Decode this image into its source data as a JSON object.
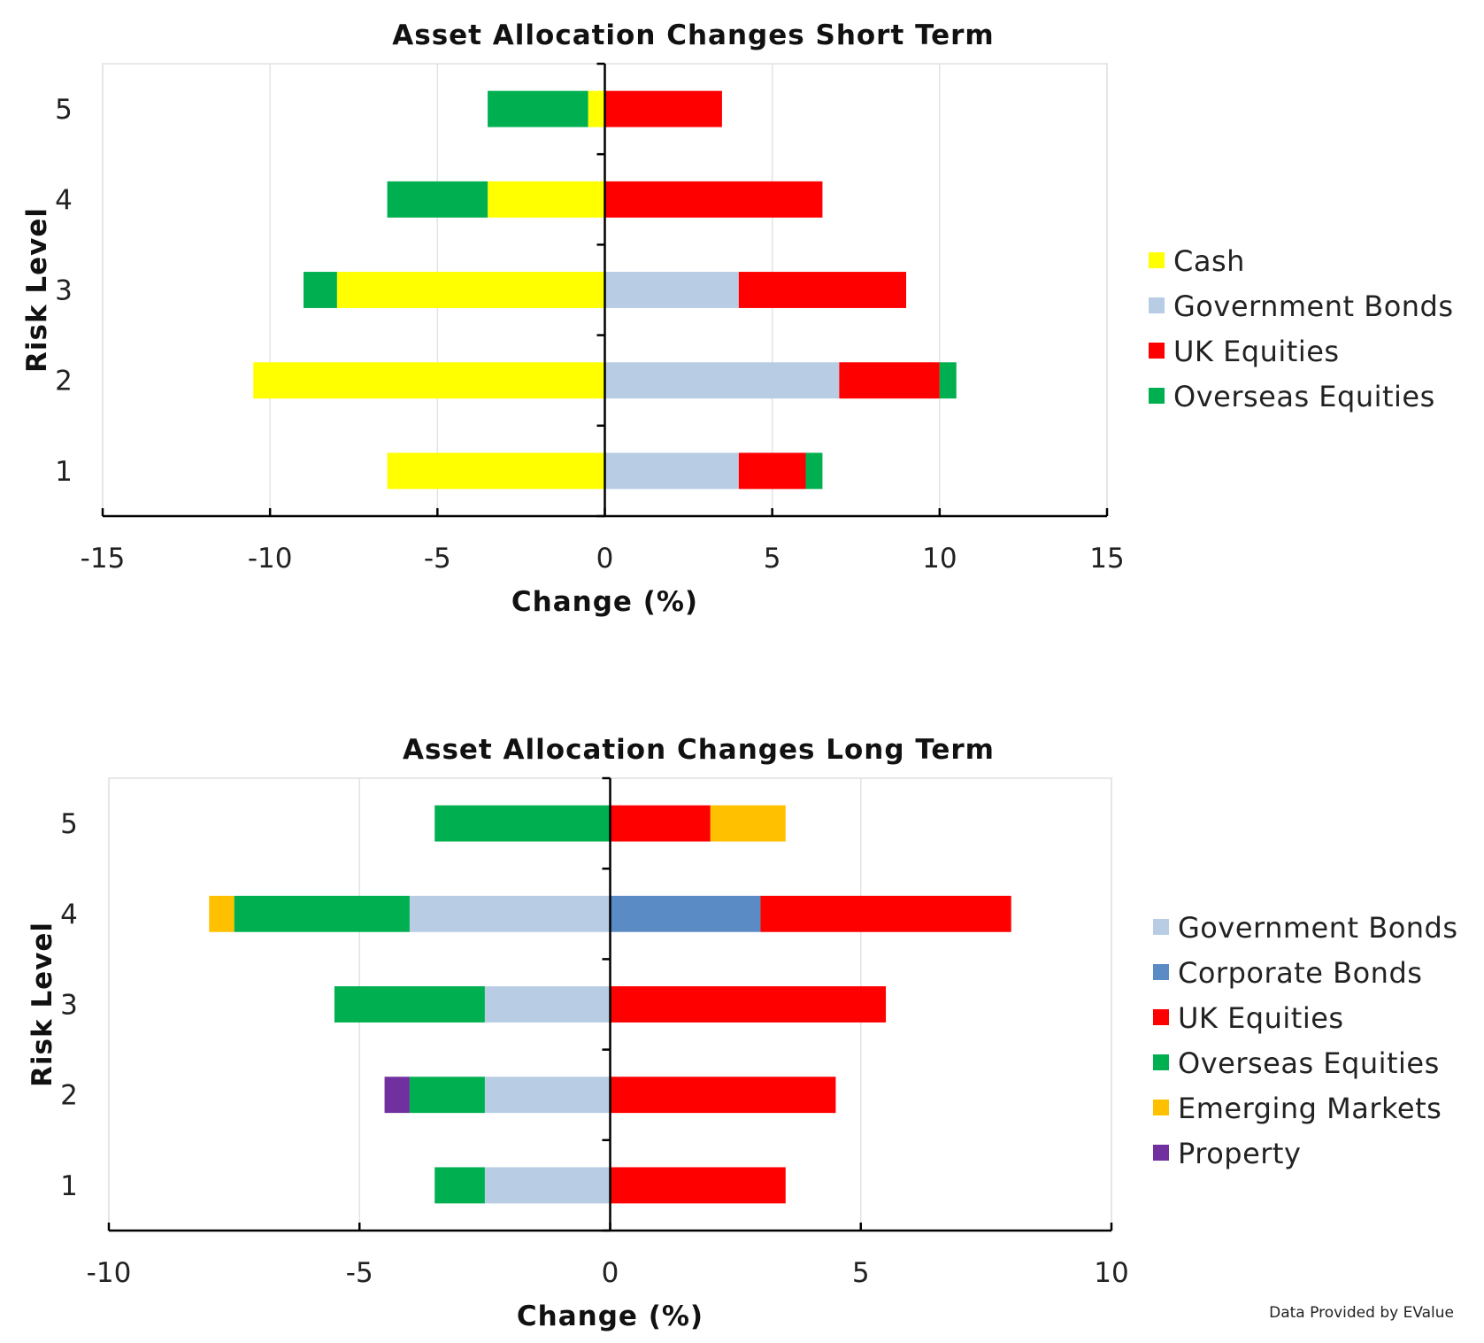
{
  "credit": "Data Provided by EValue",
  "colors": {
    "Cash": "#ffff00",
    "Government Bonds": "#b8cce4",
    "Corporate Bonds": "#5b8bc4",
    "UK Equities": "#ff0000",
    "Overseas Equities": "#00b050",
    "Emerging Markets": "#ffc000",
    "Property": "#7030a0"
  },
  "chart_data": [
    {
      "type": "bar",
      "orientation": "horizontal",
      "stacked": true,
      "title": "Asset Allocation Changes Short Term",
      "xlabel": "Change (%)",
      "ylabel": "Risk Level",
      "categories": [
        "1",
        "2",
        "3",
        "4",
        "5"
      ],
      "xlim": [
        -15,
        15
      ],
      "xticks": [
        "-15",
        "-10",
        "-5",
        "0",
        "5",
        "10",
        "15"
      ],
      "grid": "vertical",
      "legend_position": "right",
      "series": [
        {
          "name": "Cash",
          "values": [
            -6.5,
            -10.5,
            -8,
            -3.5,
            -0.5
          ]
        },
        {
          "name": "Government Bonds",
          "values": [
            4,
            7,
            4,
            0,
            0
          ]
        },
        {
          "name": "UK Equities",
          "values": [
            2,
            3,
            5,
            6.5,
            3.5
          ]
        },
        {
          "name": "Overseas Equities",
          "values": [
            0.5,
            0.5,
            -1,
            -3,
            -3
          ]
        }
      ]
    },
    {
      "type": "bar",
      "orientation": "horizontal",
      "stacked": true,
      "title": "Asset Allocation Changes Long Term",
      "xlabel": "Change (%)",
      "ylabel": "Risk Level",
      "categories": [
        "1",
        "2",
        "3",
        "4",
        "5"
      ],
      "xlim": [
        -10,
        10
      ],
      "xticks": [
        "-10",
        "-5",
        "0",
        "5",
        "10"
      ],
      "grid": "vertical",
      "legend_position": "right",
      "series": [
        {
          "name": "Government Bonds",
          "values": [
            -2.5,
            -2.5,
            -2.5,
            -4,
            0
          ]
        },
        {
          "name": "Corporate Bonds",
          "values": [
            0,
            0,
            0,
            3,
            0
          ]
        },
        {
          "name": "UK Equities",
          "values": [
            3.5,
            4.5,
            5.5,
            5,
            2
          ]
        },
        {
          "name": "Overseas Equities",
          "values": [
            -1,
            -1.5,
            -3,
            -3.5,
            -3.5
          ]
        },
        {
          "name": "Emerging Markets",
          "values": [
            0,
            0,
            0,
            -0.5,
            1.5
          ]
        },
        {
          "name": "Property",
          "values": [
            0,
            -0.5,
            0,
            0,
            0
          ]
        }
      ]
    }
  ]
}
